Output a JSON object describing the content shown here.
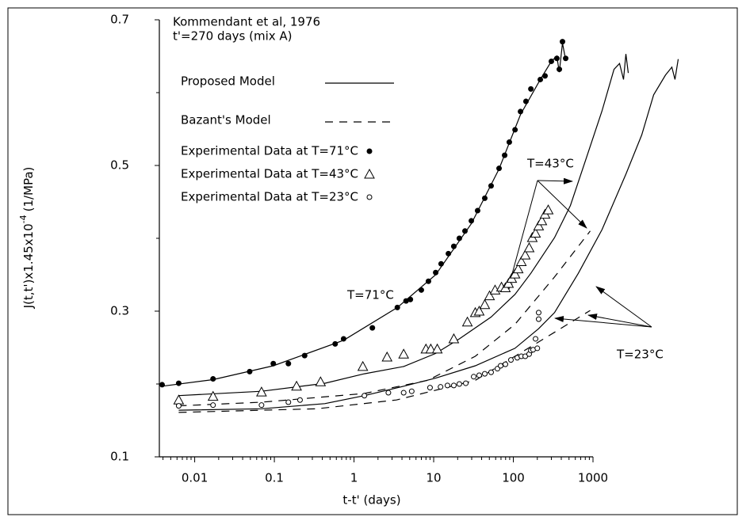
{
  "chart_data": {
    "type": "scatter",
    "annotations": [
      "Kommendant et al, 1976",
      "t'=270 days (mix A)",
      "T=71°C",
      "T=43°C",
      "T=23°C"
    ],
    "xlabel": "t-t' (days)",
    "ylabel_parts": [
      "J(t,t')x1.45x10",
      "-4",
      "(1/MPa)"
    ],
    "xscale": "log",
    "xlim": [
      0.0036,
      1000
    ],
    "xticks": [
      0.01,
      0.1,
      1,
      10,
      100,
      1000
    ],
    "ylim": [
      0.1,
      0.7
    ],
    "yticks": [
      0.1,
      0.3,
      0.5,
      0.7
    ],
    "yminorticks": [
      0.2,
      0.4,
      0.6
    ],
    "color": "#000000",
    "models": [
      {
        "name": "Proposed Model",
        "style": "solid",
        "curves": [
          {
            "x": [
              0.0039,
              0.017,
              0.097,
              0.74,
              3.5,
              10.6,
              29.7,
              66,
              123,
              218,
              300,
              352,
              378,
              414,
              454
            ],
            "y": [
              0.197,
              0.206,
              0.225,
              0.26,
              0.305,
              0.35,
              0.42,
              0.495,
              0.57,
              0.618,
              0.643,
              0.65,
              0.628,
              0.668,
              0.645
            ]
          },
          {
            "x": [
              0.0063,
              0.069,
              0.43,
              1.35,
              4.2,
              10.6,
              21,
              52.6,
              105,
              166,
              329,
              520,
              823,
              1300,
              1836,
              2155,
              2417,
              2588,
              2773
            ],
            "y": [
              0.184,
              0.19,
              0.201,
              0.214,
              0.224,
              0.242,
              0.262,
              0.292,
              0.323,
              0.352,
              0.401,
              0.445,
              0.51,
              0.575,
              0.632,
              0.64,
              0.618,
              0.653,
              0.627
            ]
          },
          {
            "x": [
              0.0063,
              0.069,
              0.43,
              1.35,
              4.2,
              10.6,
              33.3,
              105,
              208,
              329,
              655,
              1300,
              2588,
              4090,
              5770,
              8130,
              9770,
              10700,
              11750
            ],
            "y": [
              0.164,
              0.166,
              0.173,
              0.184,
              0.197,
              0.208,
              0.225,
              0.249,
              0.276,
              0.298,
              0.352,
              0.412,
              0.488,
              0.542,
              0.597,
              0.624,
              0.635,
              0.618,
              0.646
            ]
          }
        ]
      },
      {
        "name": "Bazant's Model",
        "style": "dashed",
        "curves": [
          {
            "x": [
              0.0063,
              0.069,
              1.35,
              8.4,
              33.3,
              105,
              329,
              923
            ],
            "y": [
              0.17,
              0.175,
              0.187,
              0.205,
              0.238,
              0.282,
              0.347,
              0.41
            ]
          },
          {
            "x": [
              0.0063,
              0.34,
              3.4,
              33.3,
              329,
              923
            ],
            "y": [
              0.161,
              0.166,
              0.178,
              0.205,
              0.271,
              0.301
            ]
          }
        ]
      }
    ],
    "series": [
      {
        "name": "Experimental Data at T=71°C",
        "marker": "filled-circle",
        "x": [
          0.0039,
          0.0063,
          0.017,
          0.049,
          0.097,
          0.15,
          0.24,
          0.58,
          0.74,
          1.7,
          3.5,
          4.5,
          5.1,
          7.0,
          8.6,
          10.6,
          12.4,
          15.3,
          17.9,
          21,
          24.7,
          29.7,
          35.6,
          43.8,
          52.6,
          66.2,
          77.8,
          89,
          105,
          123,
          144,
          166,
          218,
          250,
          300,
          352,
          378,
          414,
          454
        ],
        "y": [
          0.199,
          0.201,
          0.207,
          0.217,
          0.228,
          0.228,
          0.239,
          0.255,
          0.262,
          0.277,
          0.305,
          0.314,
          0.316,
          0.329,
          0.341,
          0.353,
          0.365,
          0.379,
          0.389,
          0.4,
          0.41,
          0.424,
          0.438,
          0.455,
          0.472,
          0.496,
          0.514,
          0.532,
          0.549,
          0.574,
          0.588,
          0.605,
          0.618,
          0.623,
          0.643,
          0.647,
          0.632,
          0.67,
          0.647
        ]
      },
      {
        "name": "Experimental Data at T=43°C",
        "marker": "triangle",
        "x": [
          0.0063,
          0.017,
          0.069,
          0.19,
          0.38,
          1.29,
          2.6,
          4.2,
          8.0,
          9.2,
          11.1,
          17.9,
          26.5,
          33.3,
          37.3,
          43.8,
          50.3,
          59,
          71,
          79.5,
          87,
          95.5,
          105,
          115,
          126,
          141,
          158,
          173,
          190,
          208,
          228,
          250,
          274
        ],
        "y": [
          0.178,
          0.183,
          0.189,
          0.197,
          0.203,
          0.224,
          0.237,
          0.241,
          0.248,
          0.248,
          0.248,
          0.262,
          0.285,
          0.298,
          0.3,
          0.309,
          0.321,
          0.329,
          0.333,
          0.332,
          0.338,
          0.345,
          0.351,
          0.358,
          0.368,
          0.377,
          0.387,
          0.401,
          0.407,
          0.417,
          0.424,
          0.433,
          0.439
        ]
      },
      {
        "name": "Experimental Data at T=23°C",
        "marker": "open-circle",
        "x": [
          0.0063,
          0.017,
          0.069,
          0.15,
          0.21,
          1.35,
          2.7,
          4.2,
          5.3,
          9.0,
          12.2,
          14.9,
          17.9,
          21,
          25.3,
          31.8,
          37.3,
          43.8,
          52.6,
          63.2,
          69.3,
          79.5,
          93.3,
          112,
          126,
          141,
          158,
          166,
          177,
          190,
          200,
          208,
          208
        ],
        "y": [
          0.17,
          0.171,
          0.171,
          0.175,
          0.178,
          0.184,
          0.188,
          0.188,
          0.19,
          0.195,
          0.196,
          0.198,
          0.198,
          0.2,
          0.201,
          0.21,
          0.212,
          0.214,
          0.216,
          0.221,
          0.225,
          0.227,
          0.233,
          0.236,
          0.238,
          0.238,
          0.241,
          0.246,
          0.247,
          0.262,
          0.249,
          0.289,
          0.298
        ]
      }
    ]
  }
}
